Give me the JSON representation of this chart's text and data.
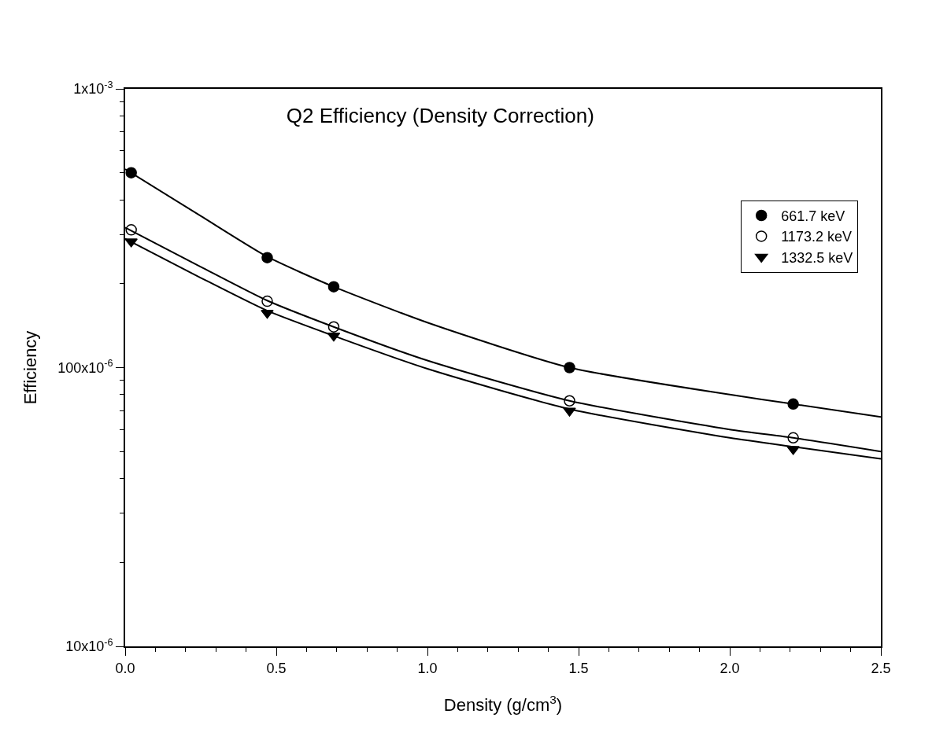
{
  "chart_data": {
    "type": "scatter",
    "title": "Q2 Efficiency (Density Correction)",
    "xlabel": "Density (g/cm$^{3}$)",
    "ylabel": "Efficiency",
    "x": [
      0.02,
      0.47,
      0.69,
      1.47,
      2.21
    ],
    "series": [
      {
        "name": "661.7 keV",
        "color": "#000000",
        "marker": "circle",
        "values": [
          0.0005,
          0.000248,
          0.000195,
          0.0001,
          7.4e-05
        ]
      },
      {
        "name": "1173.2 keV",
        "color": "#000000",
        "marker": "circle-open",
        "values": [
          0.000312,
          0.000173,
          0.00014,
          7.6e-05,
          5.6e-05
        ]
      },
      {
        "name": "1332.5 keV",
        "color": "#000000",
        "marker": "triangle-down",
        "values": [
          0.000283,
          0.000157,
          0.00013,
          7e-05,
          5.1e-05
        ]
      },
      {
        "type": "line",
        "color": "#000000",
        "x": [
          0,
          0.25,
          0.47,
          0.69,
          1.0,
          1.47,
          2.0,
          2.21,
          2.5
        ],
        "values": [
          0.000515,
          0.00035,
          0.00025,
          0.000195,
          0.000145,
          0.0001,
          8e-05,
          7.4e-05,
          6.65e-05
        ]
      },
      {
        "type": "line",
        "color": "#000000",
        "x": [
          0,
          0.25,
          0.47,
          0.69,
          1.0,
          1.47,
          2.0,
          2.21,
          2.5
        ],
        "values": [
          0.000318,
          0.00023,
          0.000174,
          0.00014,
          0.000106,
          7.6e-05,
          6e-05,
          5.6e-05,
          5e-05
        ]
      },
      {
        "type": "line",
        "color": "#000000",
        "x": [
          0,
          0.25,
          0.47,
          0.69,
          1.0,
          1.47,
          2.0,
          2.21,
          2.5
        ],
        "values": [
          0.00029,
          0.00021,
          0.00016,
          0.00013,
          9.9e-05,
          7.1e-05,
          5.6e-05,
          5.2e-05,
          4.71e-05
        ]
      }
    ],
    "log": "y",
    "xlim": [
      0,
      2.5
    ],
    "ylim": [
      1e-05,
      0.001
    ],
    "xticks": [
      {
        "value": 0,
        "label": "0.0"
      },
      {
        "value": 0.1,
        "label": null
      },
      {
        "value": 0.2,
        "label": null
      },
      {
        "value": 0.3,
        "label": null
      },
      {
        "value": 0.4,
        "label": null
      },
      {
        "value": 0.5,
        "label": "0.5"
      },
      {
        "value": 0.6,
        "label": null
      },
      {
        "value": 0.7,
        "label": null
      },
      {
        "value": 0.8,
        "label": null
      },
      {
        "value": 0.9,
        "label": null
      },
      {
        "value": 1,
        "label": "1.0"
      },
      {
        "value": 1.1,
        "label": null
      },
      {
        "value": 1.2,
        "label": null
      },
      {
        "value": 1.3,
        "label": null
      },
      {
        "value": 1.4,
        "label": null
      },
      {
        "value": 1.5,
        "label": "1.5"
      },
      {
        "value": 1.6,
        "label": null
      },
      {
        "value": 1.7,
        "label": null
      },
      {
        "value": 1.8,
        "label": null
      },
      {
        "value": 1.9,
        "label": null
      },
      {
        "value": 2,
        "label": "2.0"
      },
      {
        "value": 2.1,
        "label": null
      },
      {
        "value": 2.2,
        "label": null
      },
      {
        "value": 2.3,
        "label": null
      },
      {
        "value": 2.4,
        "label": null
      },
      {
        "value": 2.5,
        "label": "2.5"
      }
    ],
    "yticks": [
      {
        "value": 1e-05,
        "label": "10x10$^{-6}$"
      },
      {
        "value": 2e-05,
        "label": null
      },
      {
        "value": 3e-05,
        "label": null
      },
      {
        "value": 4e-05,
        "label": null
      },
      {
        "value": 5e-05,
        "label": null
      },
      {
        "value": 6e-05,
        "label": null
      },
      {
        "value": 7e-05,
        "label": null
      },
      {
        "value": 8e-05,
        "label": null
      },
      {
        "value": 9e-05,
        "label": null
      },
      {
        "value": 0.0001,
        "label": "100x10$^{-6}$"
      },
      {
        "value": 0.0002,
        "label": null
      },
      {
        "value": 0.0003,
        "label": null
      },
      {
        "value": 0.0004,
        "label": null
      },
      {
        "value": 0.0005,
        "label": null
      },
      {
        "value": 0.0006,
        "label": null
      },
      {
        "value": 0.0007,
        "label": null
      },
      {
        "value": 0.0008,
        "label": null
      },
      {
        "value": 0.0009,
        "label": null
      },
      {
        "value": 0.001,
        "label": "1x10$^{-3}$"
      }
    ],
    "grid": false,
    "legend": "top right"
  }
}
